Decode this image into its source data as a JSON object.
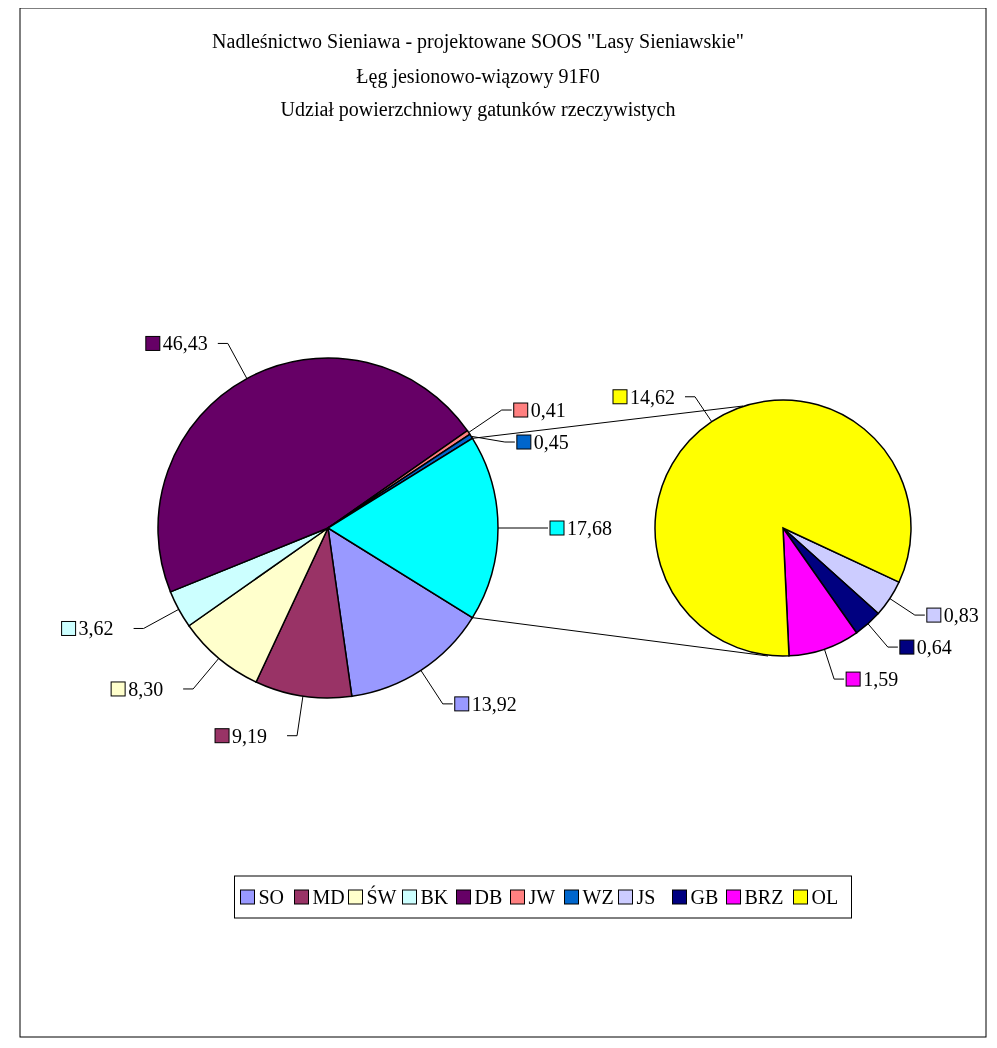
{
  "chart_data": [
    {
      "type": "pie",
      "title": "Nadleśnictwo Sieniawa - projektowane SOOS \"Lasy Sieniawskie\"",
      "subtitle": "Łęg jesionowo-wiązowy  91F0\nUdział powierzchniowy gatunków rzeczywistych",
      "categories": [
        "SO",
        "MD",
        "ŚW",
        "BK",
        "DB",
        "JW",
        "WZ",
        null
      ],
      "values": [
        13.92,
        9.19,
        8.3,
        3.62,
        46.43,
        0.41,
        0.45,
        17.68
      ],
      "value_labels": [
        "13,92",
        "9,19",
        "8,30",
        "3,62",
        "46,43",
        "0,41",
        "0,45",
        "17,68"
      ],
      "colors": [
        "#9999ff",
        "#993366",
        "#ffffcc",
        "#ccffff",
        "#660066",
        "#ff8080",
        "#0066cc",
        "#00ffff"
      ],
      "legend": "bottom"
    },
    {
      "type": "pie",
      "categories": [
        "JS",
        "GB",
        "BRZ",
        "OL"
      ],
      "values": [
        0.83,
        0.64,
        1.59,
        14.62
      ],
      "value_labels": [
        "0,83",
        "0,64",
        "1,59",
        "14,62"
      ],
      "colors": [
        "#ccccff",
        "#000080",
        "#ff00ff",
        "#ffff00"
      ],
      "legend": "bottom"
    }
  ]
}
